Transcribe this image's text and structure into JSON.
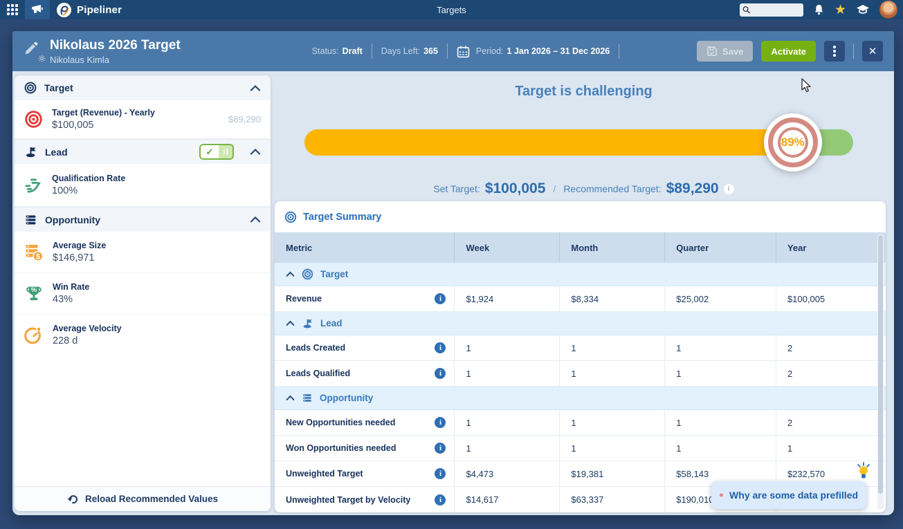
{
  "topbar": {
    "app_name": "Pipeliner",
    "page_title": "Targets"
  },
  "header": {
    "title": "Nikolaus 2026 Target",
    "subtitle": "Nikolaus Kimla",
    "status_label": "Status:",
    "status_value": "Draft",
    "days_left_label": "Days Left:",
    "days_left_value": "365",
    "period_label": "Period:",
    "period_value": "1 Jan 2026 – 31 Dec 2026",
    "save_label": "Save",
    "activate_label": "Activate"
  },
  "sidebar": {
    "sections": [
      {
        "title": "Target",
        "items": [
          {
            "label": "Target (Revenue) - Yearly",
            "value": "$100,005",
            "recommended": "$89,290"
          }
        ]
      },
      {
        "title": "Lead",
        "toggle_on": true,
        "items": [
          {
            "label": "Qualification Rate",
            "value": "100%"
          }
        ]
      },
      {
        "title": "Opportunity",
        "items": [
          {
            "label": "Average Size",
            "value": "$146,971"
          },
          {
            "label": "Win Rate",
            "value": "43%"
          },
          {
            "label": "Average Velocity",
            "value": "228 d"
          }
        ]
      }
    ],
    "footer_action": "Reload Recommended Values"
  },
  "main": {
    "banner_title": "Target is challenging",
    "progress": {
      "value": 89,
      "percent": "89%"
    },
    "set_target_label": "Set Target:",
    "set_target_value": "$100,005",
    "divider": "/",
    "recommended_target_label": "Recommended Target:",
    "recommended_target_value": "$89,290",
    "summary": {
      "title": "Target Summary",
      "columns": [
        "Metric",
        "Week",
        "Month",
        "Quarter",
        "Year"
      ],
      "groups": [
        {
          "name": "Target",
          "rows": [
            {
              "metric": "Revenue",
              "week": "$1,924",
              "month": "$8,334",
              "quarter": "$25,002",
              "year": "$100,005"
            }
          ]
        },
        {
          "name": "Lead",
          "rows": [
            {
              "metric": "Leads Created",
              "week": "1",
              "month": "1",
              "quarter": "1",
              "year": "2"
            },
            {
              "metric": "Leads Qualified",
              "week": "1",
              "month": "1",
              "quarter": "1",
              "year": "2"
            }
          ]
        },
        {
          "name": "Opportunity",
          "rows": [
            {
              "metric": "New Opportunities needed",
              "week": "1",
              "month": "1",
              "quarter": "1",
              "year": "2"
            },
            {
              "metric": "Won Opportunities needed",
              "week": "1",
              "month": "1",
              "quarter": "1",
              "year": "1"
            },
            {
              "metric": "Unweighted Target",
              "week": "$4,473",
              "month": "$19,381",
              "quarter": "$58,143",
              "year": "$232,570"
            },
            {
              "metric": "Unweighted Target by Velocity",
              "week": "$14,617",
              "month": "$63,337",
              "quarter": "$190,010",
              "year": ""
            }
          ]
        }
      ]
    },
    "tooltip": "Why are some data prefilled"
  },
  "colors": {
    "topbar": "#1d4873",
    "page_bg": "#2c4a76",
    "header_bg": "#4a78a8",
    "accent_blue": "#2f6fb3",
    "progress_orange": "#fdb502",
    "progress_green": "#93ca77",
    "activate_green": "#76b013",
    "target_red": "#e53935",
    "star_yellow": "#f7c948"
  }
}
